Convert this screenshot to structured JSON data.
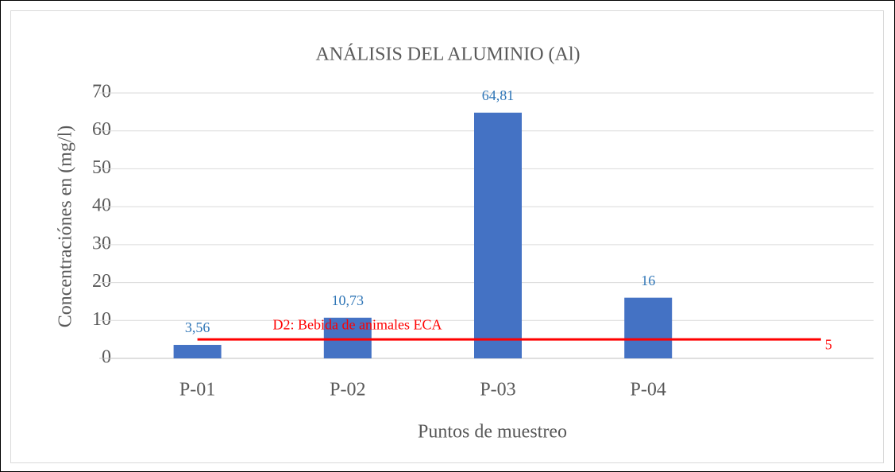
{
  "chart_data": {
    "type": "bar",
    "title": "ANÁLISIS DEL ALUMINIO (Al)",
    "x_label": "Puntos de muestreo",
    "y_label": "Concentraciónes  en (mg/l)",
    "categories": [
      "P-01",
      "P-02",
      "P-03",
      "P-04",
      null
    ],
    "values": [
      3.56,
      10.73,
      64.81,
      16,
      null
    ],
    "value_labels": [
      "3,56",
      "10,73",
      "64,81",
      "16",
      null
    ],
    "color": "#4472c4",
    "value_label_color": "#2e75b6",
    "ylim": [
      0,
      70
    ],
    "yticks": [
      0,
      10,
      20,
      30,
      40,
      50,
      60,
      70
    ],
    "grid": true,
    "reference_line": {
      "value": 5,
      "label": "D2: Bebida de animales ECA",
      "color": "#ff0000"
    }
  }
}
